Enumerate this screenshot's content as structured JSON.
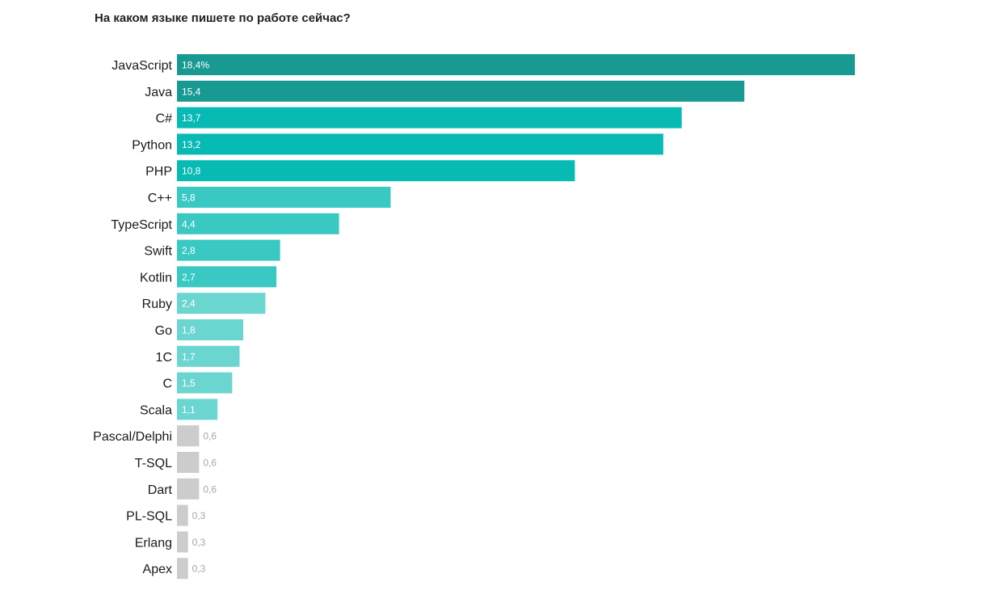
{
  "chart_data": {
    "type": "bar",
    "orientation": "horizontal",
    "title": "На каком языке пишете по работе сейчас?",
    "categories": [
      "JavaScript",
      "Java",
      "C#",
      "Python",
      "PHP",
      "C++",
      "TypeScript",
      "Swift",
      "Kotlin",
      "Ruby",
      "Go",
      "1C",
      "C",
      "Scala",
      "Pascal/Delphi",
      "T-SQL",
      "Dart",
      "PL-SQL",
      "Erlang",
      "Apex"
    ],
    "values": [
      18.4,
      15.4,
      13.7,
      13.2,
      10.8,
      5.8,
      4.4,
      2.8,
      2.7,
      2.4,
      1.8,
      1.7,
      1.5,
      1.1,
      0.6,
      0.6,
      0.6,
      0.3,
      0.3,
      0.3
    ],
    "value_labels": [
      "18,4%",
      "15,4",
      "13,7",
      "13,2",
      "10,8",
      "5,8",
      "4,4",
      "2,8",
      "2,7",
      "2,4",
      "1,8",
      "1,7",
      "1,5",
      "1,1",
      "0,6",
      "0,6",
      "0,6",
      "0,3",
      "0,3",
      "0,3"
    ],
    "colors": [
      "#189a93",
      "#189a93",
      "#07bab3",
      "#07bab3",
      "#07bab3",
      "#3ac9c2",
      "#3ac9c2",
      "#3ac9c2",
      "#3ac9c2",
      "#6bd6d0",
      "#6bd6d0",
      "#6bd6d0",
      "#6bd6d0",
      "#6bd6d0",
      "#cccccc",
      "#cccccc",
      "#cccccc",
      "#cccccc",
      "#cccccc",
      "#cccccc"
    ],
    "inside_label_color": "#ffffff",
    "outside_label_color": "#a6a6a6",
    "xlim": [
      0,
      18.4
    ],
    "grid": false,
    "legend": "none"
  }
}
